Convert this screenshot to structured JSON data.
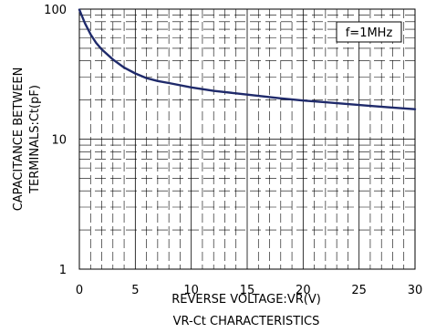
{
  "chart_data": {
    "type": "line",
    "title": "VR-Ct CHARACTERISTICS",
    "xlabel": "REVERSE VOLTAGE:VR(V)",
    "ylabel": "CAPACITANCE BETWEEN TERMINALS:Ct(pF)",
    "annotation": "f=1MHz",
    "xlim": [
      0,
      30
    ],
    "ylim": [
      1,
      100
    ],
    "y_scale": "log",
    "x_ticks": [
      "0",
      "5",
      "10",
      "15",
      "20",
      "25",
      "30"
    ],
    "y_ticks": [
      "1",
      "10",
      "100"
    ],
    "grid": true,
    "series": [
      {
        "color": "#1f2a6b",
        "x": [
          0,
          0.5,
          1,
          1.5,
          2,
          3,
          4,
          5,
          6,
          7,
          8,
          10,
          12,
          14,
          16,
          18,
          20,
          22,
          24,
          26,
          28,
          30
        ],
        "y": [
          99,
          78,
          64,
          55,
          49,
          41,
          35.5,
          32,
          29.5,
          28,
          27,
          25,
          23.5,
          22.5,
          21.5,
          20.6,
          19.8,
          19.2,
          18.6,
          18,
          17.5,
          17
        ]
      }
    ]
  }
}
